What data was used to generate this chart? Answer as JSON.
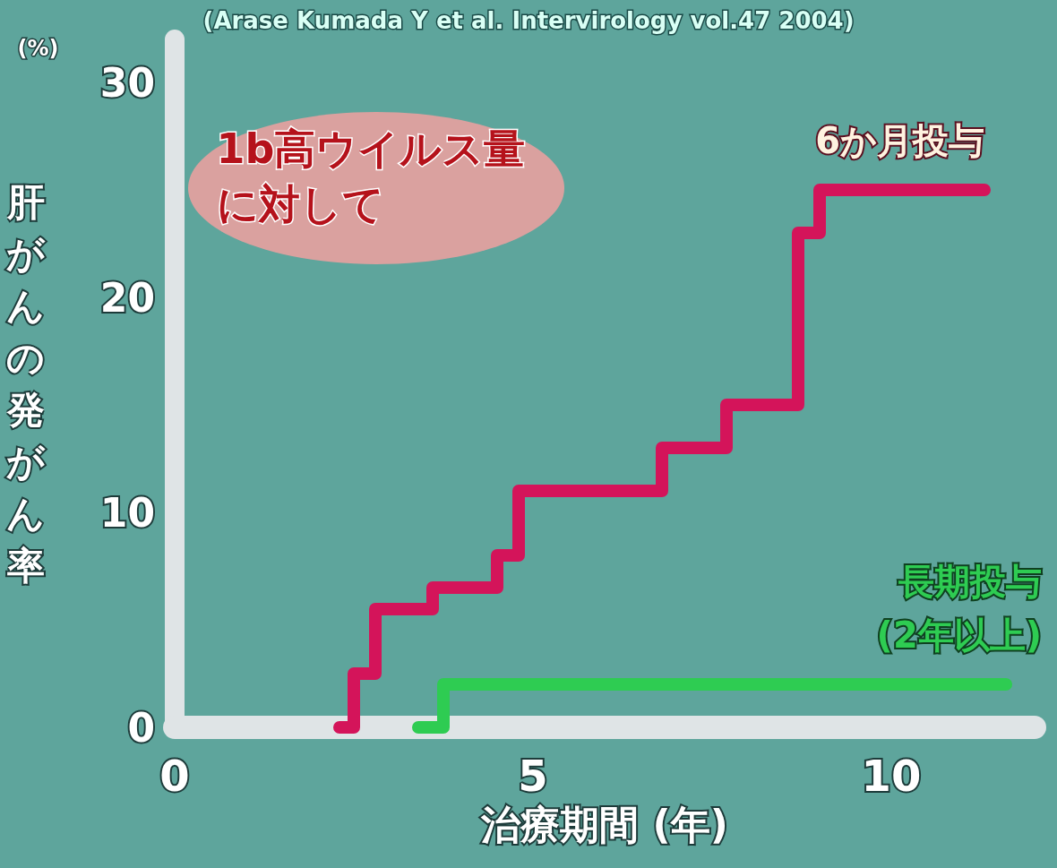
{
  "chart_data": {
    "type": "step",
    "xlabel": "治療期間 (年)",
    "ylabel": "肝がんの発がん率",
    "annotations": [
      "(Arase Kumada Y et al. Intervirology vol.47 2004)",
      "(%)",
      "1b高ウイルス量に対して"
    ],
    "xlim": [
      0,
      12
    ],
    "xticks": [
      0,
      5,
      10
    ],
    "ylim": [
      0,
      32
    ],
    "yticks": [
      0,
      10,
      20,
      30
    ],
    "series": [
      {
        "name": "6か月投与",
        "color": "#d4145a",
        "x": [
          2.3,
          2.5,
          2.8,
          3.6,
          4.5,
          4.8,
          6.8,
          7.7,
          8.7,
          9.0,
          11.3
        ],
        "values": [
          0,
          2.5,
          5.5,
          6.5,
          8,
          11,
          13,
          15,
          23,
          25,
          25
        ]
      },
      {
        "name": "長期投与 (2年以上)",
        "color": "#2ecc52",
        "x": [
          3.4,
          3.75,
          11.6
        ],
        "values": [
          0,
          2,
          2
        ]
      }
    ]
  }
}
